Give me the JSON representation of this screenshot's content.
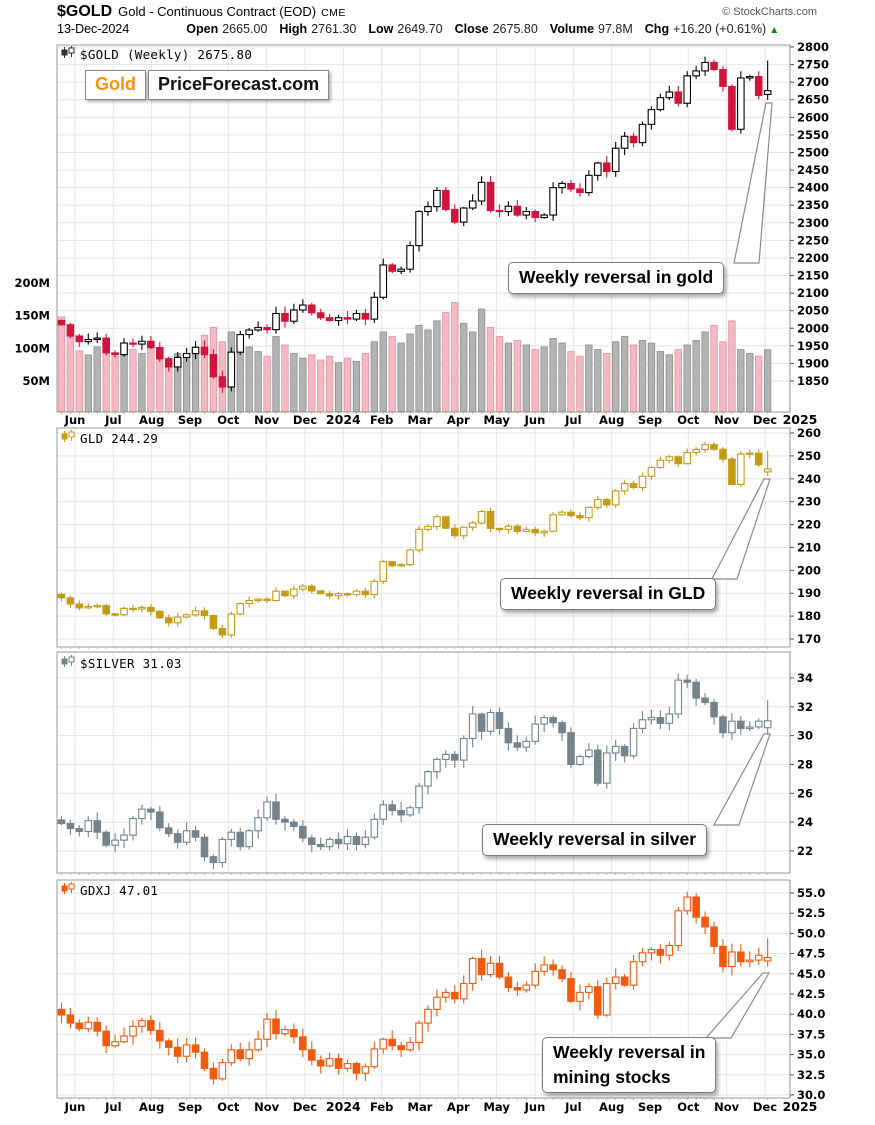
{
  "header": {
    "symbol": "$GOLD",
    "description": "Gold - Continuous Contract (EOD)",
    "exchange": "CME",
    "copyright": "© StockCharts.com",
    "date": "13-Dec-2024",
    "quote": {
      "open_label": "Open",
      "open": "2665.00",
      "high_label": "High",
      "high": "2761.30",
      "low_label": "Low",
      "low": "2649.70",
      "close_label": "Close",
      "close": "2675.80",
      "volume_label": "Volume",
      "volume": "97.8M",
      "chg_label": "Chg",
      "chg": "+16.20 (+0.61%)",
      "chg_direction": "up",
      "chg_triangle": "▲",
      "chg_color": "#008800"
    }
  },
  "logo": {
    "part1": "Gold",
    "part2": "PriceForecast.com",
    "part1_color": "#f5920f"
  },
  "x_axis": {
    "labels": [
      "Jun",
      "Jul",
      "Aug",
      "Sep",
      "Oct",
      "Nov",
      "Dec",
      "2024",
      "Feb",
      "Mar",
      "Apr",
      "May",
      "Jun",
      "Jul",
      "Aug",
      "Sep",
      "Oct",
      "Nov",
      "Dec",
      "2025"
    ],
    "bold_labels": [
      "2024",
      "2025"
    ]
  },
  "chart_data": [
    {
      "type": "candlestick",
      "symbol": "$GOLD",
      "title": "$GOLD (Weekly) 2675.80",
      "period": "Weekly",
      "last": 2675.8,
      "annotation": "Weekly reversal in gold",
      "ylim": [
        1850,
        2800
      ],
      "y_tick_labels": [
        "2800",
        "2750",
        "2700",
        "2650",
        "2600",
        "2550",
        "2500",
        "2450",
        "2400",
        "2350",
        "2300",
        "2250",
        "2200",
        "2150",
        "2100",
        "2050",
        "2000",
        "1950",
        "1900",
        "1850"
      ],
      "y_tick_values": [
        2800,
        2750,
        2700,
        2650,
        2600,
        2550,
        2500,
        2450,
        2400,
        2350,
        2300,
        2250,
        2200,
        2150,
        2100,
        2050,
        2000,
        1950,
        1900,
        1850
      ],
      "first_open": 2022,
      "closes": [
        2010,
        1978,
        1962,
        1968,
        1972,
        1930,
        1925,
        1958,
        1955,
        1963,
        1945,
        1913,
        1890,
        1917,
        1928,
        1946,
        1925,
        1862,
        1833,
        1932,
        1982,
        1995,
        2002,
        1996,
        2042,
        2020,
        2052,
        2066,
        2044,
        2030,
        2022,
        2030,
        2026,
        2042,
        2026,
        2088,
        2180,
        2162,
        2168,
        2235,
        2332,
        2346,
        2392,
        2338,
        2302,
        2342,
        2362,
        2415,
        2335,
        2332,
        2347,
        2322,
        2332,
        2315,
        2322,
        2400,
        2412,
        2396,
        2386,
        2435,
        2470,
        2446,
        2512,
        2546,
        2528,
        2580,
        2622,
        2656,
        2672,
        2640,
        2718,
        2732,
        2756,
        2736,
        2688,
        2566,
        2712,
        2716,
        2662,
        2675.8
      ],
      "last_ohlc": [
        2665.0,
        2761.3,
        2649.7,
        2675.8
      ],
      "wick": 16,
      "up_color": "#000000",
      "down_color": "#d0153c",
      "icon_color": "#333333",
      "volume": {
        "tick_labels": [
          "200M",
          "150M",
          "100M",
          "50M"
        ],
        "tick_values": [
          200,
          150,
          100,
          50
        ],
        "values": [
          148,
          128,
          96,
          90,
          102,
          95,
          88,
          105,
          98,
          92,
          108,
          96,
          85,
          92,
          88,
          95,
          120,
          132,
          110,
          125,
          98,
          102,
          95,
          88,
          118,
          105,
          92,
          85,
          90,
          82,
          88,
          78,
          85,
          80,
          92,
          110,
          125,
          118,
          108,
          122,
          135,
          128,
          142,
          155,
          170,
          138,
          125,
          160,
          132,
          118,
          108,
          112,
          105,
          98,
          102,
          115,
          108,
          95,
          88,
          105,
          98,
          92,
          110,
          118,
          105,
          112,
          108,
          95,
          90,
          98,
          105,
          112,
          125,
          135,
          110,
          142,
          98,
          92,
          88,
          97.8
        ],
        "up_color": "#b3b3b3",
        "down_color": "#f3bac4"
      }
    },
    {
      "type": "candlestick",
      "symbol": "GLD",
      "title": "GLD 244.29",
      "period": "Weekly",
      "last": 244.29,
      "annotation": "Weekly reversal in GLD",
      "ylim": [
        170,
        260
      ],
      "y_tick_labels": [
        "260",
        "250",
        "240",
        "230",
        "220",
        "210",
        "200",
        "190",
        "180",
        "170"
      ],
      "y_tick_values": [
        260,
        250,
        240,
        230,
        220,
        210,
        200,
        190,
        180,
        170
      ],
      "first_open": 189.5,
      "closes": [
        188,
        185.3,
        183.6,
        184.2,
        184.6,
        181.0,
        180.6,
        183.4,
        183.1,
        183.8,
        182.1,
        179.3,
        177.1,
        179.6,
        180.6,
        182.3,
        180.3,
        174.6,
        171.8,
        180.9,
        185.5,
        186.8,
        187.4,
        186.8,
        190.9,
        188.9,
        191.8,
        193.1,
        191.0,
        189.8,
        188.9,
        189.8,
        189.4,
        190.9,
        189.4,
        195.2,
        203.8,
        202.0,
        202.5,
        208.9,
        217.9,
        219.2,
        223.4,
        218.4,
        215.1,
        218.8,
        220.7,
        225.7,
        218.3,
        217.9,
        219.3,
        217.0,
        217.9,
        216.4,
        217.1,
        224.3,
        225.4,
        223.9,
        223.0,
        227.5,
        230.9,
        228.6,
        234.7,
        237.9,
        236.2,
        241.1,
        244.9,
        248.1,
        249.6,
        246.6,
        251.5,
        252.8,
        254.9,
        252.9,
        248.6,
        237.5,
        250.8,
        251.2,
        246.1,
        244.29
      ],
      "last_ohlc": [
        243.0,
        252.3,
        241.2,
        244.29
      ],
      "wick": 1.5,
      "up_color": "#c49b16",
      "down_color": "#c49b16",
      "icon_color": "#c49b16"
    },
    {
      "type": "candlestick",
      "symbol": "$SILVER",
      "title": "$SILVER 31.03",
      "period": "Weekly",
      "last": 31.03,
      "annotation": "Weekly reversal in silver",
      "ylim": [
        22,
        34
      ],
      "y_tick_labels": [
        "34",
        "32",
        "30",
        "28",
        "26",
        "24",
        "22"
      ],
      "y_tick_values": [
        34,
        32,
        30,
        28,
        26,
        24,
        22
      ],
      "first_open": 24.15,
      "closes": [
        23.9,
        23.55,
        23.35,
        24.1,
        23.3,
        22.4,
        22.75,
        23.1,
        24.25,
        24.9,
        24.7,
        23.6,
        23.2,
        22.6,
        23.4,
        22.95,
        21.6,
        21.2,
        22.8,
        23.3,
        22.3,
        23.4,
        24.3,
        25.4,
        24.2,
        24.0,
        23.7,
        22.9,
        22.45,
        22.3,
        22.8,
        22.5,
        23.0,
        22.45,
        22.95,
        24.2,
        25.2,
        24.8,
        24.5,
        25.0,
        26.5,
        27.5,
        28.35,
        28.7,
        28.3,
        29.8,
        31.5,
        30.3,
        31.6,
        30.5,
        29.5,
        29.2,
        29.6,
        30.8,
        31.25,
        30.9,
        30.2,
        28.0,
        28.55,
        29.0,
        26.7,
        28.8,
        29.25,
        28.6,
        30.5,
        31.1,
        31.25,
        30.85,
        31.5,
        33.85,
        33.7,
        32.6,
        32.3,
        31.3,
        30.2,
        31.0,
        30.5,
        30.6,
        31.0,
        31.03
      ],
      "last_ohlc": [
        30.55,
        32.45,
        30.1,
        31.03
      ],
      "wick": 0.5,
      "up_color": "#75838d",
      "down_color": "#75838d",
      "icon_color": "#75838d"
    },
    {
      "type": "candlestick",
      "symbol": "GDXJ",
      "title": "GDXJ 47.01",
      "period": "Weekly",
      "last": 47.01,
      "annotation": "Weekly reversal in\nmining stocks",
      "ylim": [
        30.0,
        55.0
      ],
      "y_tick_labels": [
        "55.0",
        "52.5",
        "50.0",
        "47.5",
        "45.0",
        "42.5",
        "40.0",
        "37.5",
        "35.0",
        "32.5",
        "30.0"
      ],
      "y_tick_values": [
        55.0,
        52.5,
        50.0,
        47.5,
        45.0,
        42.5,
        40.0,
        37.5,
        35.0,
        32.5,
        30.0
      ],
      "first_open": 40.6,
      "closes": [
        39.9,
        38.9,
        38.2,
        39.0,
        37.9,
        36.1,
        36.6,
        37.3,
        38.5,
        39.2,
        38.0,
        36.7,
        35.9,
        34.8,
        36.2,
        35.3,
        33.3,
        32.0,
        34.0,
        35.6,
        34.5,
        35.6,
        36.9,
        39.4,
        37.6,
        38.1,
        37.2,
        35.6,
        34.3,
        33.6,
        34.5,
        33.3,
        33.9,
        32.7,
        33.5,
        35.7,
        36.9,
        36.1,
        35.6,
        36.5,
        38.9,
        40.6,
        42.1,
        42.7,
        41.9,
        43.8,
        46.9,
        44.9,
        46.3,
        44.6,
        43.3,
        43.0,
        43.6,
        45.3,
        46.1,
        45.5,
        44.4,
        41.6,
        42.7,
        43.4,
        39.9,
        43.8,
        44.6,
        43.6,
        46.5,
        47.6,
        48.0,
        47.3,
        48.5,
        52.8,
        54.5,
        52.0,
        50.8,
        48.4,
        45.9,
        47.7,
        46.5,
        46.7,
        47.3,
        47.01
      ],
      "last_ohlc": [
        46.6,
        49.4,
        45.9,
        47.01
      ],
      "wick": 0.9,
      "up_color": "#ee5a0e",
      "down_color": "#ee5a0e",
      "icon_color": "#ee5a0e"
    }
  ]
}
